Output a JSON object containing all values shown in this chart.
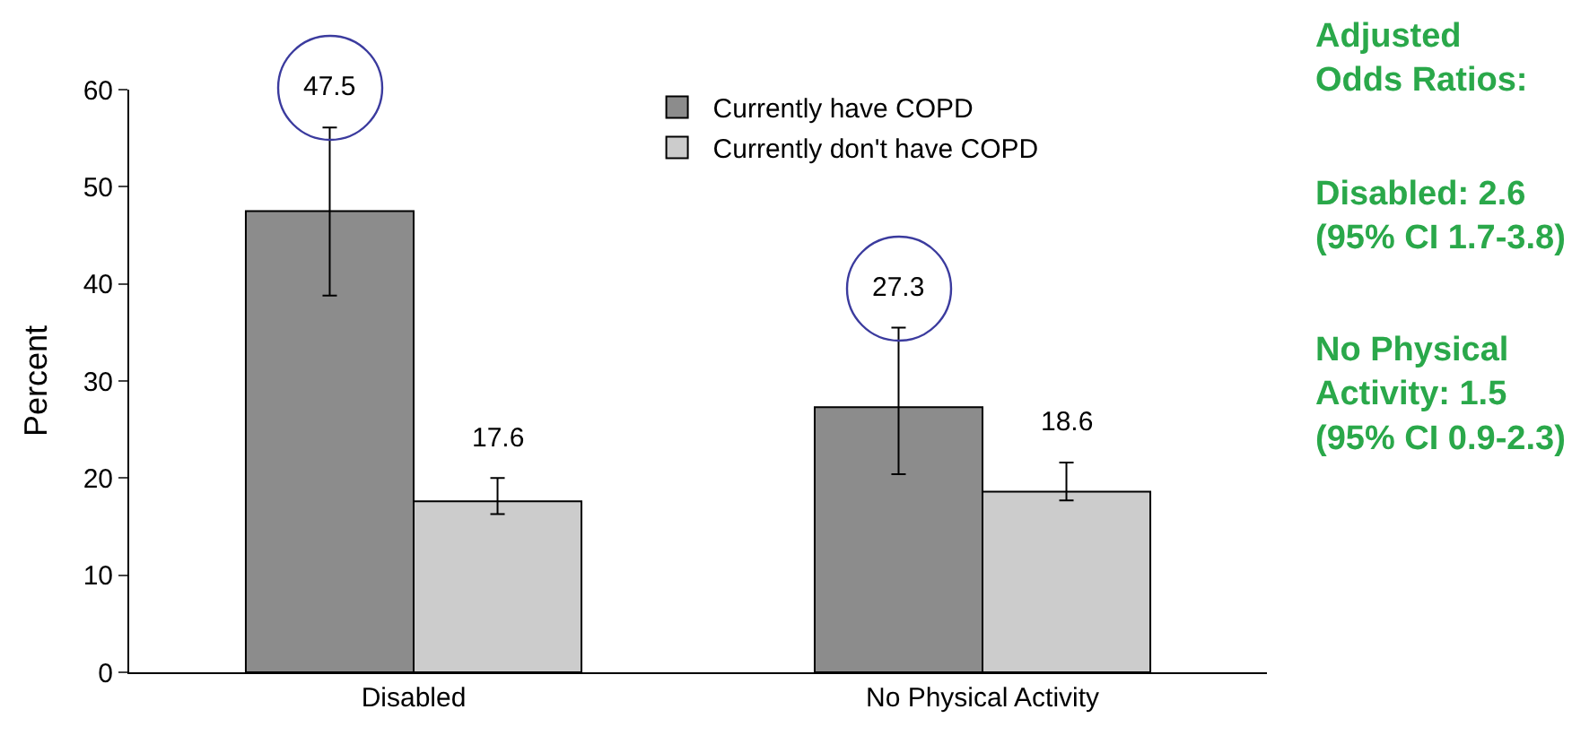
{
  "chart_data": {
    "type": "bar",
    "ylabel": "Percent",
    "categories": [
      "Disabled",
      "No Physical Activity"
    ],
    "series": [
      {
        "name": "Currently have COPD",
        "color": "#8c8c8c",
        "values": [
          47.5,
          27.3
        ],
        "errors": [
          [
            38.8,
            56.1
          ],
          [
            20.4,
            35.5
          ]
        ]
      },
      {
        "name": "Currently don't have COPD",
        "color": "#cccccc",
        "values": [
          17.6,
          18.6
        ],
        "errors": [
          [
            16.3,
            20.0
          ],
          [
            17.7,
            21.6
          ]
        ],
        "value_labels": [
          "17.6",
          "18.6"
        ]
      }
    ],
    "ylim": [
      0,
      60
    ],
    "yticks": [
      0,
      10,
      20,
      30,
      40,
      50,
      60
    ],
    "grid": false,
    "legend": "top",
    "annotations": [
      "47.5",
      "27.3",
      "Adjusted\nOdds Ratios:",
      "Disabled: 2.6\n(95% CI 1.7-3.8)",
      "No Physical\nActivity: 1.5\n(95% CI 0.9-2.3)"
    ]
  }
}
